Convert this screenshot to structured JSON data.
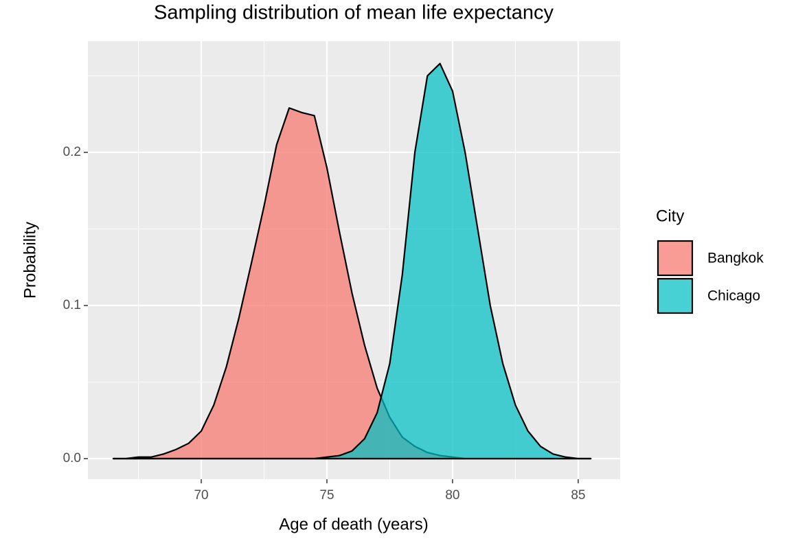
{
  "chart_data": {
    "type": "density",
    "title": "Sampling distribution of mean life expectancy",
    "x_label": "Age of death (years)",
    "y_label": "Probability",
    "legend_title": "City",
    "x": [
      66.5,
      67,
      67.5,
      68,
      68.5,
      69,
      69.5,
      70,
      70.5,
      71,
      71.5,
      72,
      72.5,
      73,
      73.5,
      74,
      74.5,
      75,
      75.5,
      76,
      76.5,
      77,
      77.5,
      78,
      78.5,
      79,
      79.5,
      80,
      80.5,
      81,
      81.5,
      82,
      82.5,
      83,
      83.5,
      84,
      84.5,
      85,
      85.5
    ],
    "series": [
      {
        "name": "Bangkok",
        "color": "#F8766D",
        "values": [
          0,
          0,
          0.001,
          0.001,
          0.003,
          0.006,
          0.01,
          0.018,
          0.035,
          0.06,
          0.092,
          0.128,
          0.165,
          0.205,
          0.229,
          0.226,
          0.224,
          0.19,
          0.148,
          0.108,
          0.074,
          0.046,
          0.027,
          0.014,
          0.008,
          0.004,
          0.002,
          0.001,
          0,
          0,
          0,
          0,
          0,
          0,
          0,
          0,
          0,
          0,
          0
        ]
      },
      {
        "name": "Chicago",
        "color": "#00BFC4",
        "values": [
          0,
          0,
          0,
          0,
          0,
          0,
          0,
          0,
          0,
          0,
          0,
          0,
          0,
          0,
          0,
          0,
          0,
          0.001,
          0.002,
          0.005,
          0.013,
          0.03,
          0.062,
          0.12,
          0.2,
          0.25,
          0.258,
          0.24,
          0.2,
          0.15,
          0.1,
          0.062,
          0.035,
          0.018,
          0.008,
          0.003,
          0.001,
          0,
          0
        ]
      }
    ],
    "alpha": 0.72,
    "xlim": [
      65.49,
      86.67
    ],
    "ylim": [
      -0.01345,
      0.2726
    ],
    "xticks": [
      70,
      75,
      80,
      85
    ],
    "yticks": [
      {
        "value": 0,
        "label": "0.0"
      },
      0.1,
      0.2
    ],
    "x_minor_grid": [
      67.5,
      72.5,
      77.5,
      82.5
    ],
    "y_minor_grid": [
      0.05,
      0.15,
      0.25
    ],
    "grid": true,
    "legend": "right"
  }
}
